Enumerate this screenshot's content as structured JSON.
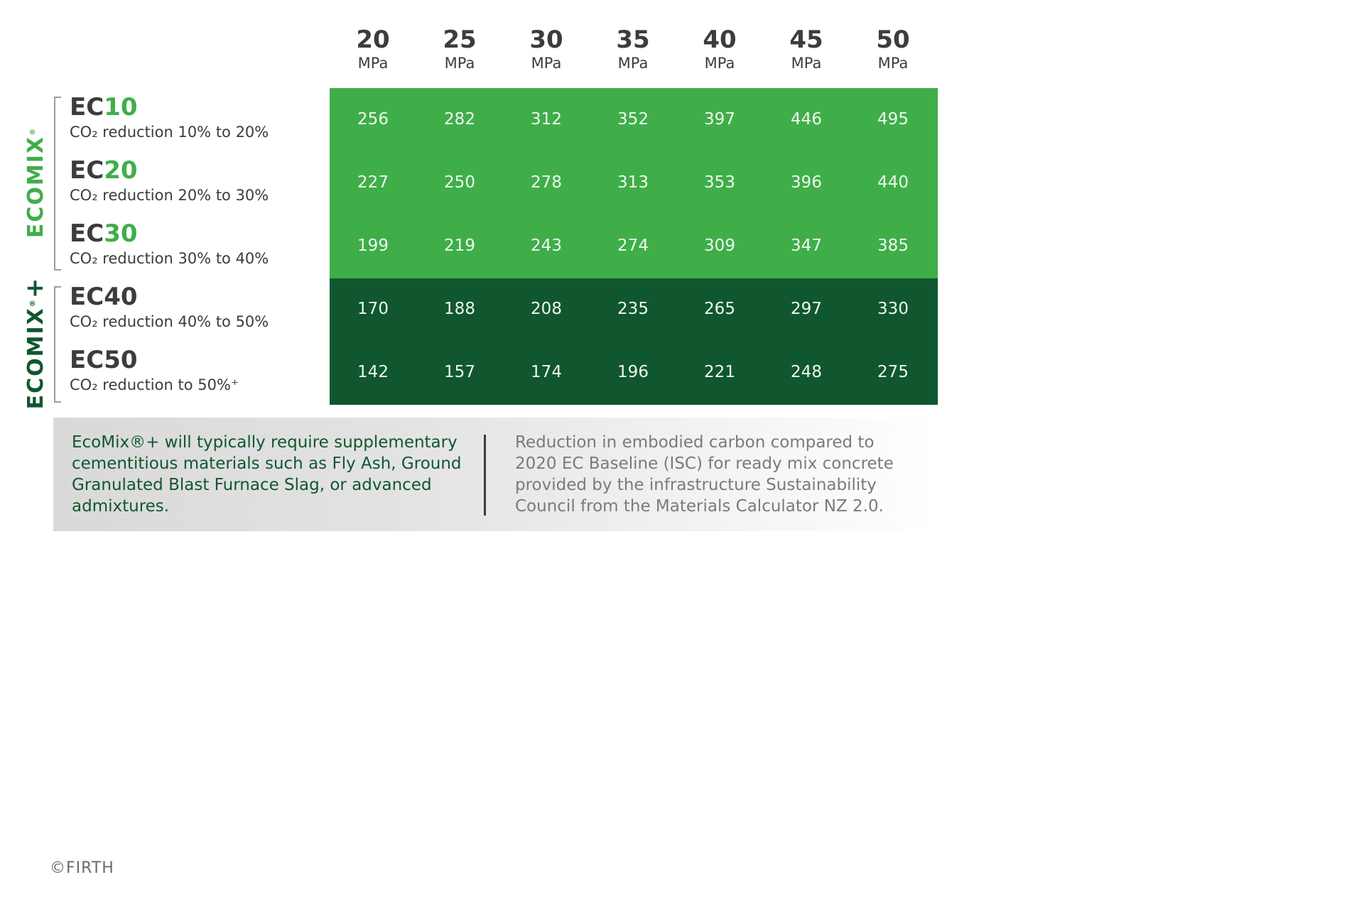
{
  "chart_data": {
    "type": "table",
    "columns": [
      {
        "strength": "20",
        "unit": "MPa"
      },
      {
        "strength": "25",
        "unit": "MPa"
      },
      {
        "strength": "30",
        "unit": "MPa"
      },
      {
        "strength": "35",
        "unit": "MPa"
      },
      {
        "strength": "40",
        "unit": "MPa"
      },
      {
        "strength": "45",
        "unit": "MPa"
      },
      {
        "strength": "50",
        "unit": "MPa"
      }
    ],
    "groups": [
      {
        "name": "ECOMIX",
        "mark": "®",
        "suffix": "",
        "color": "#3fae49",
        "rows": [
          0,
          1,
          2
        ]
      },
      {
        "name": "ECOMIX",
        "mark": "®",
        "suffix": "+",
        "color": "#10572f",
        "rows": [
          3,
          4
        ]
      }
    ],
    "rows": [
      {
        "prefix": "EC",
        "number": "10",
        "desc": "CO₂ reduction 10% to 20%",
        "values": [
          256,
          282,
          312,
          352,
          397,
          446,
          495
        ]
      },
      {
        "prefix": "EC",
        "number": "20",
        "desc": "CO₂ reduction 20% to 30%",
        "values": [
          227,
          250,
          278,
          313,
          353,
          396,
          440
        ]
      },
      {
        "prefix": "EC",
        "number": "30",
        "desc": "CO₂ reduction 30% to 40%",
        "values": [
          199,
          219,
          243,
          274,
          309,
          347,
          385
        ]
      },
      {
        "prefix": "EC",
        "number": "40",
        "desc": "CO₂ reduction 40% to 50%",
        "values": [
          170,
          188,
          208,
          235,
          265,
          297,
          330
        ]
      },
      {
        "prefix": "EC",
        "number": "50",
        "desc": "CO₂ reduction to 50%⁺",
        "values": [
          142,
          157,
          174,
          196,
          221,
          248,
          275
        ]
      }
    ],
    "colors": {
      "light_block": "#3fae49",
      "dark_block": "#10572f"
    }
  },
  "notes": {
    "left": "EcoMix®+ will typically require supplementary cementitious materials such as Fly Ash, Ground Granulated Blast Furnace Slag, or advanced admixtures.",
    "right": "Reduction in embodied carbon compared to 2020 EC Baseline (ISC) for ready mix concrete provided by the infrastructure Sustainability Council from the Materials Calculator NZ 2.0."
  },
  "footer": {
    "copyright": "©FIRTH"
  }
}
